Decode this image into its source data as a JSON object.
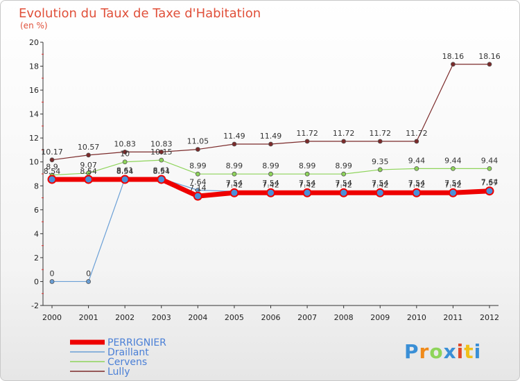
{
  "chart_data": {
    "type": "line",
    "title": "Evolution du Taux de Taxe d'Habitation",
    "subtitle": "(en %)",
    "xlabel": "",
    "ylabel": "",
    "ylim": [
      -2,
      20
    ],
    "yticks": [
      -2,
      0,
      2,
      4,
      6,
      8,
      10,
      12,
      14,
      16,
      18,
      20
    ],
    "categories": [
      "2000",
      "2001",
      "2002",
      "2003",
      "2004",
      "2005",
      "2006",
      "2007",
      "2008",
      "2009",
      "2010",
      "2011",
      "2012"
    ],
    "series": [
      {
        "name": "Lully",
        "color": "#7b2a2a",
        "width": 1.2,
        "values": [
          10.17,
          10.57,
          10.83,
          10.83,
          11.05,
          11.49,
          11.49,
          11.72,
          11.72,
          11.72,
          11.72,
          18.16,
          18.16
        ],
        "labels": [
          "10.17",
          "10.57",
          "10.83",
          "10.83",
          "11.05",
          "11.49",
          "11.49",
          "11.72",
          "11.72",
          "11.72",
          "11.72",
          "18.16",
          "18.16"
        ]
      },
      {
        "name": "Cervens",
        "color": "#8ed45a",
        "width": 1.2,
        "values": [
          8.9,
          9.07,
          10.0,
          10.15,
          8.99,
          8.99,
          8.99,
          8.99,
          8.99,
          9.35,
          9.44,
          9.44,
          9.44
        ],
        "labels": [
          "8.9",
          "9.07",
          "10",
          "10.15",
          "8.99",
          "8.99",
          "8.99",
          "8.99",
          "8.99",
          "9.35",
          "9.44",
          "9.44",
          "9.44"
        ]
      },
      {
        "name": "Draillant",
        "color": "#6a9fd6",
        "width": 1.2,
        "values": [
          0,
          0,
          8.61,
          8.61,
          7.64,
          7.54,
          7.54,
          7.54,
          7.54,
          7.54,
          7.54,
          7.54,
          7.64
        ],
        "labels": [
          "0",
          "0",
          "8.61",
          "8.61",
          "7.64",
          "7.54",
          "7.54",
          "7.54",
          "7.54",
          "7.54",
          "7.54",
          "7.54",
          "7.64"
        ]
      },
      {
        "name": "PERRIGNIER",
        "color": "#ee0000",
        "width": 7,
        "values": [
          8.54,
          8.54,
          8.54,
          8.54,
          7.14,
          7.42,
          7.42,
          7.42,
          7.42,
          7.42,
          7.42,
          7.42,
          7.57
        ],
        "labels": [
          "8.54",
          "8.54",
          "8.54",
          "8.54",
          "7.14",
          "7.42",
          "7.42",
          "7.42",
          "7.42",
          "7.42",
          "7.42",
          "7.42",
          "7.57"
        ]
      }
    ],
    "legend": [
      "PERRIGNIER",
      "Draillant",
      "Cervens",
      "Lully"
    ],
    "legend_position": "bottom-left",
    "grid": false
  },
  "logo": {
    "text": "Proxiti",
    "colors": [
      "#3a8fd6",
      "#f08a1a",
      "#8ed45a",
      "#3a8fd6",
      "#e04a2a",
      "#f0c01a",
      "#3a8fd6"
    ]
  }
}
